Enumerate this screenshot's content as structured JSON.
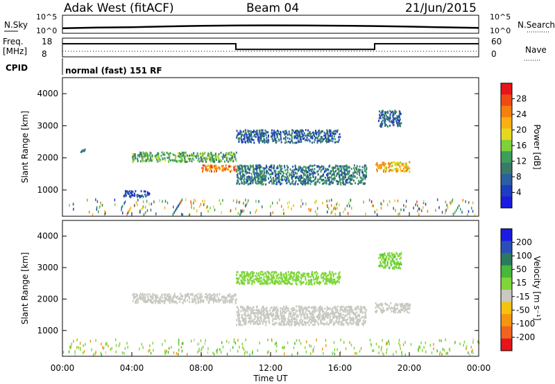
{
  "header": {
    "station": "Adak West (fitACF)",
    "beam": "Beam 04",
    "date": "21/Jun/2015"
  },
  "strip_labels": {
    "nsky": "N.Sky",
    "nsearch": "N.Search",
    "freq_line1": "Freq.",
    "freq_line2": "[MHz]",
    "nave": "Nave",
    "cpid": "CPID",
    "cpid_value": "normal (fast) 151 RF"
  },
  "strip_ticks": {
    "nsky_top": "10^5",
    "nsky_bottom": "10^0",
    "nsearch_top": "10^5",
    "nsearch_bottom": "10^0",
    "freq_top": "18",
    "freq_bottom": "8",
    "nave_top": "60",
    "nave_bottom": "0"
  },
  "axes": {
    "ylabel": "Slant Range [km]",
    "xlabel": "Time UT",
    "yticks": [
      "4000",
      "3000",
      "2000",
      "1000"
    ],
    "xticks": [
      "00:00",
      "04:00",
      "08:00",
      "12:00",
      "16:00",
      "20:00",
      "00:00"
    ]
  },
  "colorbars": {
    "power": {
      "label": "Power [dB]",
      "ticks": [
        "28",
        "24",
        "20",
        "16",
        "12",
        "8",
        "4"
      ],
      "colors": [
        "#e8141c",
        "#f04a14",
        "#f57f0f",
        "#f9b112",
        "#e6d81f",
        "#7dd13a",
        "#3c9e5c",
        "#3a7a68",
        "#2a5fa0",
        "#1d3cc0",
        "#1a1ae0"
      ]
    },
    "velocity": {
      "label": "Velocity [m s⁻¹]",
      "ticks": [
        "200",
        "100",
        "50",
        "15",
        "-15",
        "-50",
        "-100",
        "-200"
      ],
      "colors": [
        "#1a1ae0",
        "#2a4fb8",
        "#2a7a5c",
        "#46b83a",
        "#7fd63a",
        "#c9c9c2",
        "#f5c20f",
        "#f5960f",
        "#f0641e",
        "#e8141c"
      ]
    }
  },
  "chart_data": [
    {
      "type": "line",
      "name_label": "N.Sky",
      "x_unit": "hours UT",
      "xlim": [
        0,
        24
      ],
      "scale": "log",
      "ylim_left_text": [
        "10^0",
        "10^5"
      ],
      "description_values": "noise level rising from ~10^1.5 at 00:00 to ~10^2.2 near 12:00 and decreasing back by 24:00",
      "x": [
        0,
        2,
        4,
        6,
        8,
        10,
        12,
        14,
        16,
        18,
        20,
        22,
        24
      ],
      "y_log10": [
        1.4,
        1.6,
        1.7,
        1.9,
        2.05,
        2.15,
        2.2,
        2.15,
        2.1,
        2.0,
        1.85,
        1.65,
        1.5
      ]
    },
    {
      "type": "line",
      "name_label": "Freq. [MHz]",
      "xlim": [
        0,
        24
      ],
      "ylim": [
        8,
        18
      ],
      "x": [
        0,
        10,
        10,
        18,
        18,
        24
      ],
      "y": [
        15,
        15,
        12,
        12,
        15,
        15
      ]
    },
    {
      "type": "heatmap",
      "title": "Power [dB]",
      "xlim": [
        0,
        24
      ],
      "ylim": [
        180,
        4500
      ],
      "zlim": [
        0,
        30
      ],
      "features": [
        {
          "x_range": [
            1,
            1.4
          ],
          "range_km": [
            2200,
            2300
          ],
          "power": 10
        },
        {
          "x_range": [
            4,
            10
          ],
          "range_km": [
            1900,
            2200
          ],
          "power": 14
        },
        {
          "x_range": [
            8,
            10
          ],
          "range_km": [
            1600,
            1800
          ],
          "power": 26
        },
        {
          "x_range": [
            10,
            17.5
          ],
          "range_km": [
            1200,
            1800
          ],
          "power": 10
        },
        {
          "x_range": [
            10,
            16
          ],
          "range_km": [
            2500,
            2900
          ],
          "power": 8
        },
        {
          "x_range": [
            18,
            20
          ],
          "range_km": [
            1600,
            1900
          ],
          "power": 22
        },
        {
          "x_range": [
            18.2,
            19.5
          ],
          "range_km": [
            3000,
            3500
          ],
          "power": 8
        },
        {
          "x_range": [
            3.5,
            5
          ],
          "range_km": [
            800,
            1000
          ],
          "power": 6
        }
      ]
    },
    {
      "type": "heatmap",
      "title": "Velocity [m s-1]",
      "xlim": [
        0,
        24
      ],
      "ylim": [
        180,
        4500
      ],
      "zlim": [
        -200,
        200
      ],
      "features": [
        {
          "x_range": [
            4,
            10
          ],
          "range_km": [
            1900,
            2200
          ],
          "velocity": 0
        },
        {
          "x_range": [
            10,
            17.5
          ],
          "range_km": [
            1200,
            1800
          ],
          "velocity": 0
        },
        {
          "x_range": [
            10,
            16
          ],
          "range_km": [
            2500,
            2900
          ],
          "velocity": 30
        },
        {
          "x_range": [
            18.2,
            19.5
          ],
          "range_km": [
            3000,
            3500
          ],
          "velocity": 40
        },
        {
          "x_range": [
            18,
            20
          ],
          "range_km": [
            1600,
            1900
          ],
          "velocity": 0
        }
      ]
    }
  ]
}
